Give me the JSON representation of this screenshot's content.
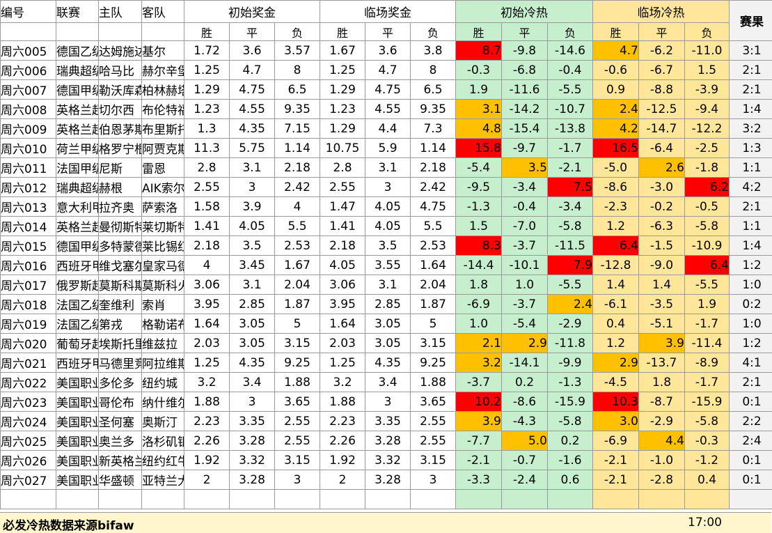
{
  "headers": {
    "id": "编号",
    "league": "联赛",
    "home": "主队",
    "away": "客队",
    "init_prize": "初始奖金",
    "live_prize": "临场奖金",
    "init_heat": "初始冷热",
    "live_heat": "临场冷热",
    "result": "赛果",
    "win": "胜",
    "draw": "平",
    "lose": "负"
  },
  "colors": {
    "green_band": "#c6efce",
    "yellow_band": "#ffe699",
    "orange": "#ffc000",
    "red": "#ff0000"
  },
  "rows": [
    {
      "id": "周六005",
      "league": "德国乙级",
      "home": "达姆施达",
      "away": "基尔",
      "init": [
        "1.72",
        "3.6",
        "3.57"
      ],
      "live": [
        "1.67",
        "3.6",
        "3.8"
      ],
      "iheat": [
        "8.7",
        "-9.8",
        "-14.6"
      ],
      "lheat": [
        "4.7",
        "-6.2",
        "-11.0"
      ],
      "result": "3:1",
      "ic": [
        "red",
        "",
        ""
      ],
      "lc": [
        "orange",
        "",
        ""
      ]
    },
    {
      "id": "周六006",
      "league": "瑞典超级",
      "home": "哈马比",
      "away": "赫尔辛堡",
      "init": [
        "1.25",
        "4.7",
        "8"
      ],
      "live": [
        "1.25",
        "4.7",
        "8"
      ],
      "iheat": [
        "-0.3",
        "-6.8",
        "-0.4"
      ],
      "lheat": [
        "-0.6",
        "-6.7",
        "1.5"
      ],
      "result": "2:1",
      "ic": [
        "",
        "",
        ""
      ],
      "lc": [
        "",
        "",
        ""
      ]
    },
    {
      "id": "周六007",
      "league": "德国甲级",
      "home": "勒沃库森",
      "away": "柏林赫塔",
      "init": [
        "1.29",
        "4.75",
        "6.5"
      ],
      "live": [
        "1.29",
        "4.75",
        "6.5"
      ],
      "iheat": [
        "1.9",
        "-11.6",
        "-5.5"
      ],
      "lheat": [
        "0.9",
        "-8.8",
        "-3.9"
      ],
      "result": "2:1",
      "ic": [
        "",
        "",
        ""
      ],
      "lc": [
        "",
        "",
        ""
      ]
    },
    {
      "id": "周六008",
      "league": "英格兰超",
      "home": "切尔西",
      "away": "布伦特福",
      "init": [
        "1.23",
        "4.55",
        "9.35"
      ],
      "live": [
        "1.23",
        "4.55",
        "9.35"
      ],
      "iheat": [
        "3.1",
        "-14.2",
        "-10.7"
      ],
      "lheat": [
        "2.4",
        "-12.5",
        "-9.4"
      ],
      "result": "1:4",
      "ic": [
        "orange",
        "",
        ""
      ],
      "lc": [
        "orange",
        "",
        ""
      ]
    },
    {
      "id": "周六009",
      "league": "英格兰超",
      "home": "伯恩茅斯",
      "away": "布里斯托",
      "init": [
        "1.3",
        "4.35",
        "7.15"
      ],
      "live": [
        "1.29",
        "4.4",
        "7.3"
      ],
      "iheat": [
        "4.8",
        "-15.4",
        "-13.8"
      ],
      "lheat": [
        "4.2",
        "-14.7",
        "-12.2"
      ],
      "result": "3:2",
      "ic": [
        "orange",
        "",
        ""
      ],
      "lc": [
        "orange",
        "",
        ""
      ]
    },
    {
      "id": "周六010",
      "league": "荷兰甲级",
      "home": "格罗宁根",
      "away": "阿贾克斯",
      "init": [
        "11.3",
        "5.75",
        "1.14"
      ],
      "live": [
        "10.75",
        "5.9",
        "1.14"
      ],
      "iheat": [
        "15.8",
        "-9.7",
        "-1.7"
      ],
      "lheat": [
        "16.5",
        "-6.4",
        "-2.5"
      ],
      "result": "1:3",
      "ic": [
        "red",
        "",
        ""
      ],
      "lc": [
        "red",
        "",
        ""
      ]
    },
    {
      "id": "周六011",
      "league": "法国甲级",
      "home": "尼斯",
      "away": "雷恩",
      "init": [
        "2.8",
        "3.1",
        "2.18"
      ],
      "live": [
        "2.8",
        "3.1",
        "2.18"
      ],
      "iheat": [
        "-5.4",
        "3.5",
        "-2.1"
      ],
      "lheat": [
        "-5.0",
        "2.6",
        "-1.8"
      ],
      "result": "1:1",
      "ic": [
        "",
        "orange",
        ""
      ],
      "lc": [
        "",
        "orange",
        ""
      ]
    },
    {
      "id": "周六012",
      "league": "瑞典超级",
      "home": "赫根",
      "away": "AIK索尔纳",
      "init": [
        "2.55",
        "3",
        "2.42"
      ],
      "live": [
        "2.55",
        "3",
        "2.42"
      ],
      "iheat": [
        "-9.5",
        "-3.4",
        "7.5"
      ],
      "lheat": [
        "-8.6",
        "-3.0",
        "6.2"
      ],
      "result": "4:2",
      "ic": [
        "",
        "",
        "red"
      ],
      "lc": [
        "",
        "",
        "red"
      ]
    },
    {
      "id": "周六013",
      "league": "意大利甲",
      "home": "拉齐奥",
      "away": "萨索洛",
      "init": [
        "1.58",
        "3.9",
        "4"
      ],
      "live": [
        "1.47",
        "4.05",
        "4.75"
      ],
      "iheat": [
        "-1.3",
        "-0.4",
        "-3.4"
      ],
      "lheat": [
        "-2.3",
        "-0.2",
        "-0.5"
      ],
      "result": "2:1",
      "ic": [
        "",
        "",
        ""
      ],
      "lc": [
        "",
        "",
        ""
      ]
    },
    {
      "id": "周六014",
      "league": "英格兰超",
      "home": "曼彻斯特",
      "away": "莱切斯特",
      "init": [
        "1.41",
        "4.05",
        "5.5"
      ],
      "live": [
        "1.41",
        "4.05",
        "5.5"
      ],
      "iheat": [
        "1.5",
        "-7.0",
        "-5.8"
      ],
      "lheat": [
        "1.2",
        "-6.3",
        "-5.8"
      ],
      "result": "1:1",
      "ic": [
        "",
        "",
        ""
      ],
      "lc": [
        "",
        "",
        ""
      ]
    },
    {
      "id": "周六015",
      "league": "德国甲级",
      "home": "多特蒙德",
      "away": "莱比锡红",
      "init": [
        "2.18",
        "3.5",
        "2.53"
      ],
      "live": [
        "2.18",
        "3.5",
        "2.53"
      ],
      "iheat": [
        "8.3",
        "-3.7",
        "-11.5"
      ],
      "lheat": [
        "6.4",
        "-1.5",
        "-10.9"
      ],
      "result": "1:4",
      "ic": [
        "red",
        "",
        ""
      ],
      "lc": [
        "red",
        "",
        ""
      ]
    },
    {
      "id": "周六016",
      "league": "西班牙甲",
      "home": "维戈塞尔",
      "away": "皇家马德",
      "init": [
        "4",
        "3.45",
        "1.67"
      ],
      "live": [
        "4.05",
        "3.55",
        "1.64"
      ],
      "iheat": [
        "-14.4",
        "-10.1",
        "7.9"
      ],
      "lheat": [
        "-12.8",
        "-9.0",
        "6.4"
      ],
      "result": "1:2",
      "ic": [
        "",
        "",
        "red"
      ],
      "lc": [
        "",
        "",
        "red"
      ]
    },
    {
      "id": "周六017",
      "league": "俄罗斯超",
      "home": "莫斯科斯",
      "away": "莫斯科火",
      "init": [
        "3.06",
        "3.1",
        "2.04"
      ],
      "live": [
        "3.06",
        "3.1",
        "2.04"
      ],
      "iheat": [
        "1.8",
        "1.0",
        "-5.5"
      ],
      "lheat": [
        "1.4",
        "1.4",
        "-5.5"
      ],
      "result": "1:0",
      "ic": [
        "",
        "",
        ""
      ],
      "lc": [
        "",
        "",
        ""
      ]
    },
    {
      "id": "周六018",
      "league": "法国乙级",
      "home": "奎维利",
      "away": "索肖",
      "init": [
        "3.95",
        "2.85",
        "1.87"
      ],
      "live": [
        "3.95",
        "2.85",
        "1.87"
      ],
      "iheat": [
        "-6.9",
        "-3.7",
        "2.4"
      ],
      "lheat": [
        "-6.1",
        "-3.5",
        "1.9"
      ],
      "result": "0:2",
      "ic": [
        "",
        "",
        "orange"
      ],
      "lc": [
        "",
        "",
        ""
      ]
    },
    {
      "id": "周六019",
      "league": "法国乙级",
      "home": "第戎",
      "away": "格勒诺布",
      "init": [
        "1.64",
        "3.05",
        "5"
      ],
      "live": [
        "1.64",
        "3.05",
        "5"
      ],
      "iheat": [
        "1.0",
        "-5.4",
        "-2.9"
      ],
      "lheat": [
        "0.4",
        "-5.1",
        "-1.7"
      ],
      "result": "1:0",
      "ic": [
        "",
        "",
        ""
      ],
      "lc": [
        "",
        "",
        ""
      ]
    },
    {
      "id": "周六020",
      "league": "葡萄牙超",
      "home": "埃斯托里",
      "away": "维兹拉",
      "init": [
        "2.03",
        "3.05",
        "3.15"
      ],
      "live": [
        "2.03",
        "3.05",
        "3.15"
      ],
      "iheat": [
        "2.1",
        "2.9",
        "-11.8"
      ],
      "lheat": [
        "1.2",
        "3.9",
        "-11.4"
      ],
      "result": "1:2",
      "ic": [
        "orange",
        "orange",
        ""
      ],
      "lc": [
        "",
        "orange",
        ""
      ]
    },
    {
      "id": "周六021",
      "league": "西班牙甲",
      "home": "马德里竞",
      "away": "阿拉维斯",
      "init": [
        "1.25",
        "4.35",
        "9.25"
      ],
      "live": [
        "1.25",
        "4.35",
        "9.25"
      ],
      "iheat": [
        "3.2",
        "-14.1",
        "-9.9"
      ],
      "lheat": [
        "2.9",
        "-13.7",
        "-8.9"
      ],
      "result": "4:1",
      "ic": [
        "orange",
        "",
        ""
      ],
      "lc": [
        "orange",
        "",
        ""
      ]
    },
    {
      "id": "周六022",
      "league": "美国职业",
      "home": "多伦多",
      "away": "纽约城",
      "init": [
        "3.2",
        "3.4",
        "1.88"
      ],
      "live": [
        "3.2",
        "3.4",
        "1.88"
      ],
      "iheat": [
        "-3.7",
        "0.2",
        "-1.3"
      ],
      "lheat": [
        "-4.5",
        "1.8",
        "-1.7"
      ],
      "result": "2:1",
      "ic": [
        "",
        "",
        ""
      ],
      "lc": [
        "",
        "",
        ""
      ]
    },
    {
      "id": "周六023",
      "league": "美国职业",
      "home": "哥伦布",
      "away": "纳什维尔",
      "init": [
        "1.88",
        "3",
        "3.65"
      ],
      "live": [
        "1.88",
        "3",
        "3.65"
      ],
      "iheat": [
        "10.2",
        "-8.6",
        "-15.9"
      ],
      "lheat": [
        "10.3",
        "-8.7",
        "-15.9"
      ],
      "result": "0:1",
      "ic": [
        "red",
        "",
        ""
      ],
      "lc": [
        "red",
        "",
        ""
      ]
    },
    {
      "id": "周六024",
      "league": "美国职业",
      "home": "圣何塞",
      "away": "奥斯汀",
      "init": [
        "2.23",
        "3.35",
        "2.55"
      ],
      "live": [
        "2.23",
        "3.35",
        "2.55"
      ],
      "iheat": [
        "3.9",
        "-4.3",
        "-5.8"
      ],
      "lheat": [
        "3.0",
        "-2.9",
        "-5.8"
      ],
      "result": "2:2",
      "ic": [
        "orange",
        "",
        ""
      ],
      "lc": [
        "orange",
        "",
        ""
      ]
    },
    {
      "id": "周六025",
      "league": "美国职业",
      "home": "奥兰多",
      "away": "洛杉矶银",
      "init": [
        "2.26",
        "3.28",
        "2.55"
      ],
      "live": [
        "2.26",
        "3.28",
        "2.55"
      ],
      "iheat": [
        "-7.7",
        "5.0",
        "0.2"
      ],
      "lheat": [
        "-6.9",
        "4.4",
        "-0.3"
      ],
      "result": "2:4",
      "ic": [
        "",
        "orange",
        ""
      ],
      "lc": [
        "",
        "orange",
        ""
      ]
    },
    {
      "id": "周六026",
      "league": "美国职业",
      "home": "新英格兰",
      "away": "纽约红牛",
      "init": [
        "1.92",
        "3.32",
        "3.15"
      ],
      "live": [
        "1.92",
        "3.32",
        "3.15"
      ],
      "iheat": [
        "-2.1",
        "-0.7",
        "-1.6"
      ],
      "lheat": [
        "-2.1",
        "-1.0",
        "-1.2"
      ],
      "result": "0:1",
      "ic": [
        "",
        "",
        ""
      ],
      "lc": [
        "",
        "",
        ""
      ]
    },
    {
      "id": "周六027",
      "league": "美国职业",
      "home": "华盛顿",
      "away": "亚特兰大",
      "init": [
        "2",
        "3.28",
        "3"
      ],
      "live": [
        "2",
        "3.28",
        "3"
      ],
      "iheat": [
        "-3.3",
        "-2.4",
        "0.6"
      ],
      "lheat": [
        "-2.1",
        "-2.8",
        "0.4"
      ],
      "result": "0:1",
      "ic": [
        "",
        "",
        ""
      ],
      "lc": [
        "",
        "",
        ""
      ]
    }
  ],
  "footer": {
    "source": "必发冷热数据来源bifaw",
    "time": "17:00"
  }
}
